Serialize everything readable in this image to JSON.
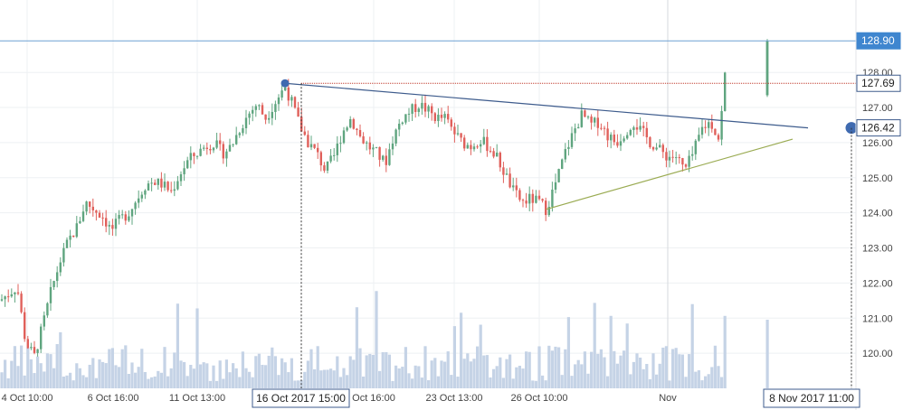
{
  "chart_data": {
    "type": "candlestick",
    "y_ticks": [
      "120.00",
      "121.00",
      "122.00",
      "123.00",
      "124.00",
      "125.00",
      "126.00",
      "127.00",
      "128.00"
    ],
    "ylim": [
      119.0,
      129.6
    ],
    "x_ticks": [
      "4 Oct 10:00",
      "6 Oct 16:00",
      "11 Oct 13:00",
      "Oct 16:00",
      "23 Oct 13:00",
      "26 Oct 10:00",
      "Nov"
    ],
    "crosshair_x_label": "16 Oct 2017 15:00",
    "last_date_label": "8 Nov 2017 11:00",
    "price_labels": {
      "current": "128.90",
      "horizontal_level": "127.69",
      "trendline_end": "126.42"
    },
    "price_values": {
      "current": 128.9,
      "horizontal_level": 127.69,
      "trendline_end": 126.42
    },
    "trendlines": [
      {
        "name": "",
        "from": [
          0.333,
          127.69
        ],
        "to": [
          0.944,
          126.42
        ],
        "color": "#3d5b8c"
      },
      {
        "name": "",
        "from": [
          0.638,
          124.1
        ],
        "to": [
          0.926,
          126.1
        ],
        "color": "#9aab52"
      }
    ],
    "keypoints": [
      [
        0.0,
        121.5
      ],
      [
        0.02,
        121.9
      ],
      [
        0.03,
        120.3
      ],
      [
        0.04,
        119.9
      ],
      [
        0.05,
        120.8
      ],
      [
        0.06,
        121.8
      ],
      [
        0.07,
        122.6
      ],
      [
        0.08,
        123.2
      ],
      [
        0.09,
        123.6
      ],
      [
        0.1,
        124.3
      ],
      [
        0.11,
        124.1
      ],
      [
        0.12,
        123.9
      ],
      [
        0.13,
        123.5
      ],
      [
        0.14,
        123.8
      ],
      [
        0.15,
        124.0
      ],
      [
        0.16,
        124.4
      ],
      [
        0.17,
        124.8
      ],
      [
        0.18,
        124.9
      ],
      [
        0.19,
        124.8
      ],
      [
        0.2,
        124.6
      ],
      [
        0.21,
        125.1
      ],
      [
        0.22,
        125.5
      ],
      [
        0.23,
        125.7
      ],
      [
        0.24,
        125.9
      ],
      [
        0.25,
        126.0
      ],
      [
        0.26,
        125.7
      ],
      [
        0.27,
        125.9
      ],
      [
        0.28,
        126.4
      ],
      [
        0.29,
        126.8
      ],
      [
        0.3,
        127.1
      ],
      [
        0.31,
        126.7
      ],
      [
        0.32,
        127.1
      ],
      [
        0.333,
        127.6
      ],
      [
        0.34,
        127.2
      ],
      [
        0.35,
        126.5
      ],
      [
        0.36,
        126.0
      ],
      [
        0.37,
        125.7
      ],
      [
        0.38,
        125.2
      ],
      [
        0.39,
        125.6
      ],
      [
        0.4,
        126.3
      ],
      [
        0.41,
        126.7
      ],
      [
        0.42,
        126.2
      ],
      [
        0.43,
        125.9
      ],
      [
        0.44,
        125.7
      ],
      [
        0.45,
        125.4
      ],
      [
        0.46,
        126.2
      ],
      [
        0.47,
        126.7
      ],
      [
        0.48,
        126.9
      ],
      [
        0.49,
        127.1
      ],
      [
        0.5,
        126.9
      ],
      [
        0.51,
        126.7
      ],
      [
        0.52,
        126.7
      ],
      [
        0.53,
        126.3
      ],
      [
        0.54,
        126.0
      ],
      [
        0.55,
        125.9
      ],
      [
        0.56,
        126.1
      ],
      [
        0.57,
        125.9
      ],
      [
        0.58,
        125.6
      ],
      [
        0.59,
        125.1
      ],
      [
        0.6,
        124.6
      ],
      [
        0.61,
        124.3
      ],
      [
        0.62,
        124.4
      ],
      [
        0.63,
        124.3
      ],
      [
        0.638,
        124.1
      ],
      [
        0.65,
        124.9
      ],
      [
        0.66,
        125.7
      ],
      [
        0.67,
        126.3
      ],
      [
        0.68,
        126.8
      ],
      [
        0.69,
        126.5
      ],
      [
        0.7,
        126.6
      ],
      [
        0.71,
        126.2
      ],
      [
        0.72,
        126.0
      ],
      [
        0.73,
        126.3
      ],
      [
        0.74,
        126.6
      ],
      [
        0.75,
        126.3
      ],
      [
        0.76,
        126.0
      ],
      [
        0.77,
        125.8
      ],
      [
        0.78,
        125.6
      ],
      [
        0.79,
        125.6
      ],
      [
        0.8,
        125.2
      ],
      [
        0.81,
        125.7
      ],
      [
        0.82,
        126.4
      ],
      [
        0.83,
        126.6
      ],
      [
        0.84,
        126.1
      ],
      [
        0.845,
        127.3
      ],
      [
        0.85,
        128.9
      ]
    ]
  }
}
